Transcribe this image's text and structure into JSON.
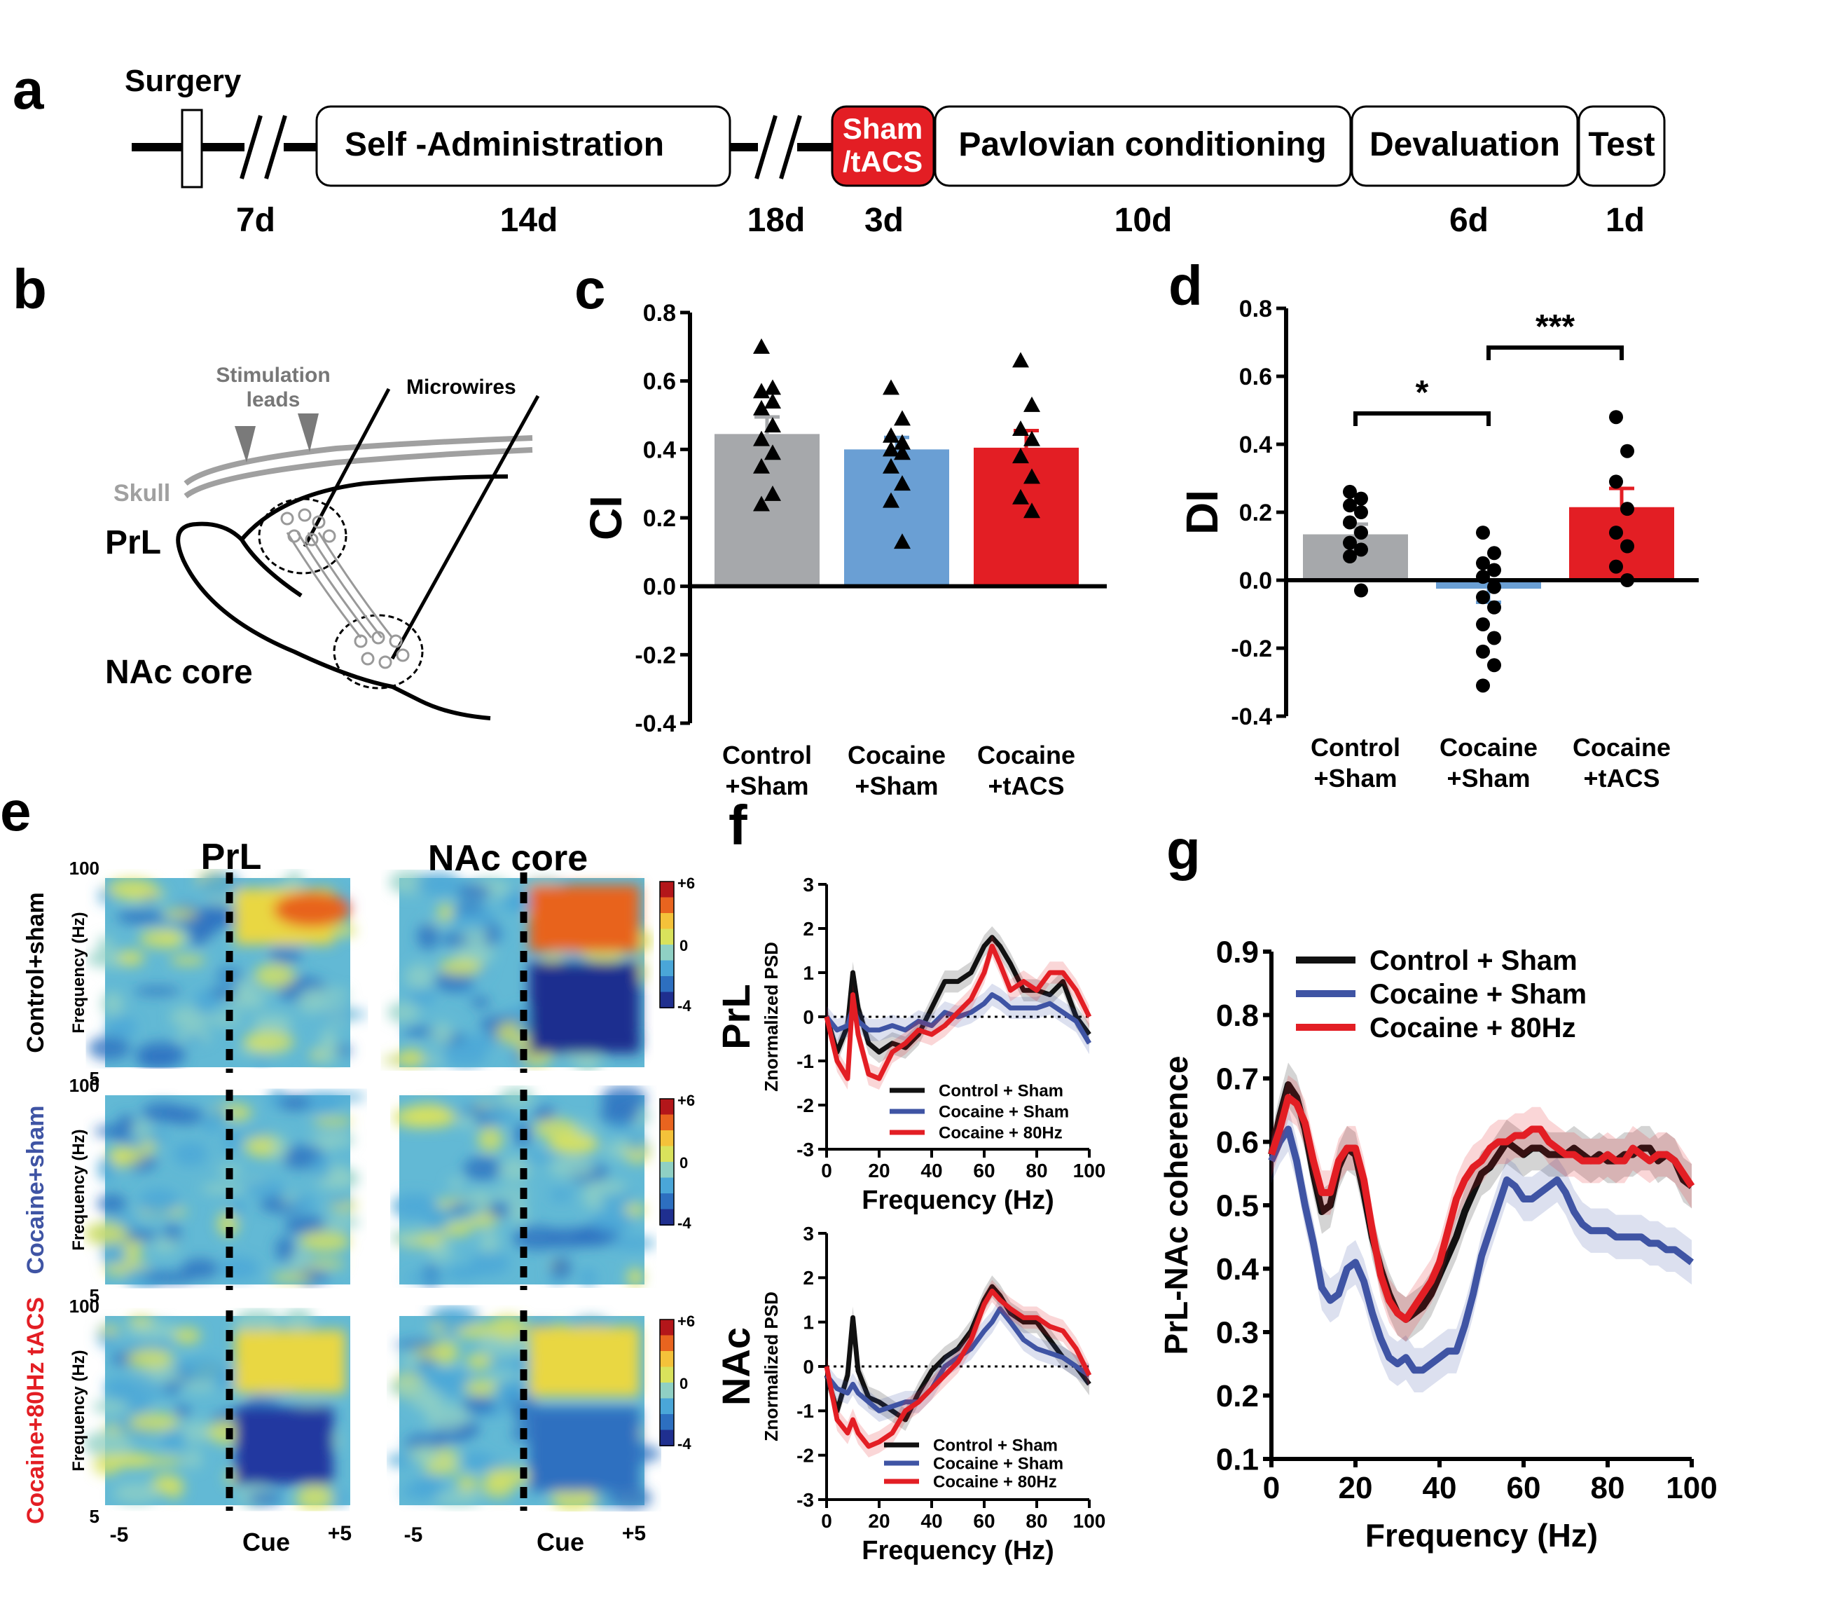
{
  "panel_letters": {
    "a": "a",
    "b": "b",
    "c": "c",
    "d": "d",
    "e": "e",
    "f": "f",
    "g": "g"
  },
  "timeline": {
    "surgery_label": "Surgery",
    "boxes": [
      "Self -Administration",
      "Sham",
      "/tACS",
      "Pavlovian conditioning",
      "Devaluation",
      "Test"
    ],
    "durations": [
      "7d",
      "14d",
      "18d",
      "3d",
      "10d",
      "6d",
      "1d"
    ],
    "colors": {
      "sham_box": "#e31e24"
    }
  },
  "diagram": {
    "labels": {
      "stimulation": "Stimulation",
      "leads": "leads",
      "microwires": "Microwires",
      "skull": "Skull",
      "prl": "PrL",
      "nac": "NAc core"
    }
  },
  "heatmaps": {
    "col_titles": [
      "PrL",
      "NAc core"
    ],
    "row_labels": [
      "Control+sham",
      "Cocaine+sham",
      "Cocaine+80Hz tACS"
    ],
    "row_label_colors": [
      "#000000",
      "#3f54a4",
      "#e31e24"
    ],
    "ylabel": "Frequency (Hz)",
    "ytick_top": "100",
    "ytick_bottom": "5",
    "x_left": "-5",
    "x_mid": "Cue",
    "x_right": "+5",
    "colorbar_ticks": [
      "+6",
      "0",
      "-4"
    ]
  },
  "chart_data": [
    {
      "panel": "c",
      "type": "bar",
      "categories": [
        "Control\n+Sham",
        "Cocaine\n+Sham",
        "Cocaine\n+tACS"
      ],
      "category_lines": [
        [
          "Control",
          "+Sham"
        ],
        [
          "Cocaine",
          "+Sham"
        ],
        [
          "Cocaine",
          "+tACS"
        ]
      ],
      "values": [
        0.445,
        0.4,
        0.405
      ],
      "errors": [
        0.05,
        0.035,
        0.05
      ],
      "colors": [
        "#a6a8ab",
        "#6a9fd4",
        "#e31e24"
      ],
      "points_marker": "triangle",
      "points": [
        [
          0.7,
          0.58,
          0.57,
          0.54,
          0.52,
          0.47,
          0.43,
          0.39,
          0.35,
          0.27,
          0.24
        ],
        [
          0.58,
          0.49,
          0.44,
          0.42,
          0.4,
          0.39,
          0.35,
          0.3,
          0.25,
          0.13
        ],
        [
          0.66,
          0.53,
          0.46,
          0.43,
          0.38,
          0.32,
          0.26,
          0.22
        ]
      ],
      "ylabel": "CI",
      "ylim": [
        -0.4,
        0.8
      ],
      "yticks": [
        "0.8",
        "0.6",
        "0.4",
        "0.2",
        "0.0",
        "-0.2",
        "-0.4"
      ]
    },
    {
      "panel": "d",
      "type": "bar",
      "categories": [
        "Control\n+Sham",
        "Cocaine\n+Sham",
        "Cocaine\n+tACS"
      ],
      "category_lines": [
        [
          "Control",
          "+Sham"
        ],
        [
          "Cocaine",
          "+Sham"
        ],
        [
          "Cocaine",
          "+tACS"
        ]
      ],
      "values": [
        0.135,
        -0.025,
        0.215
      ],
      "errors": [
        0.03,
        0.04,
        0.055
      ],
      "colors": [
        "#a6a8ab",
        "#6a9fd4",
        "#e31e24"
      ],
      "points_marker": "circle",
      "points": [
        [
          0.26,
          0.24,
          0.22,
          0.2,
          0.17,
          0.14,
          0.11,
          0.09,
          0.07,
          -0.03
        ],
        [
          0.14,
          0.08,
          0.05,
          0.03,
          0.01,
          -0.02,
          -0.05,
          -0.08,
          -0.13,
          -0.17,
          -0.21,
          -0.25,
          -0.31
        ],
        [
          0.48,
          0.38,
          0.29,
          0.21,
          0.14,
          0.1,
          0.04,
          0.0
        ]
      ],
      "ylabel": "DI",
      "ylim": [
        -0.4,
        0.8
      ],
      "yticks": [
        "0.8",
        "0.6",
        "0.4",
        "0.2",
        "0.0",
        "-0.2",
        "-0.4"
      ],
      "significance": [
        {
          "from": 0,
          "to": 1,
          "label": "*"
        },
        {
          "from": 1,
          "to": 2,
          "label": "***"
        }
      ]
    },
    {
      "panel": "f-top",
      "type": "line",
      "ylabel": "Znormalized PSD",
      "side_label": "PrL",
      "xlabel": "Frequency (Hz)",
      "xlim": [
        0,
        100
      ],
      "ylim": [
        -3,
        3
      ],
      "xticks": [
        "0",
        "20",
        "40",
        "60",
        "80",
        "100"
      ],
      "yticks": [
        "3",
        "2",
        "1",
        "0",
        "-1",
        "-2",
        "-3"
      ],
      "x": [
        0,
        4,
        8,
        10,
        12,
        16,
        20,
        25,
        30,
        35,
        40,
        45,
        50,
        55,
        60,
        63,
        66,
        70,
        75,
        80,
        85,
        90,
        95,
        100
      ],
      "series": [
        {
          "name": "Control + Sham",
          "color": "#111111",
          "values": [
            0.0,
            -0.8,
            -0.2,
            1.0,
            0.2,
            -0.6,
            -0.8,
            -0.6,
            -0.7,
            -0.4,
            0.2,
            0.8,
            0.8,
            1.0,
            1.6,
            1.8,
            1.6,
            1.2,
            0.6,
            0.6,
            0.5,
            0.8,
            0.0,
            -0.4
          ]
        },
        {
          "name": "Cocaine + Sham",
          "color": "#3f54a4",
          "values": [
            0.0,
            -0.3,
            -0.2,
            0.2,
            -0.1,
            -0.3,
            -0.3,
            -0.2,
            -0.3,
            -0.1,
            -0.2,
            0.1,
            0.0,
            0.1,
            0.3,
            0.5,
            0.4,
            0.2,
            0.2,
            0.2,
            0.3,
            0.1,
            -0.1,
            -0.6
          ]
        },
        {
          "name": "Cocaine + 80Hz",
          "color": "#e31e24",
          "values": [
            0.0,
            -1.0,
            -1.4,
            0.5,
            -0.4,
            -1.3,
            -1.4,
            -0.8,
            -0.6,
            -0.3,
            -0.4,
            -0.2,
            0.1,
            0.4,
            1.0,
            1.6,
            1.2,
            0.6,
            0.8,
            0.6,
            1.0,
            1.0,
            0.6,
            0.0
          ]
        }
      ]
    },
    {
      "panel": "f-bottom",
      "type": "line",
      "ylabel": "Znormalized PSD",
      "side_label": "NAc",
      "xlabel": "Frequency (Hz)",
      "xlim": [
        0,
        100
      ],
      "ylim": [
        -3,
        3
      ],
      "xticks": [
        "0",
        "20",
        "40",
        "60",
        "80",
        "100"
      ],
      "yticks": [
        "3",
        "2",
        "1",
        "0",
        "-1",
        "-2",
        "-3"
      ],
      "x": [
        0,
        4,
        8,
        10,
        12,
        16,
        20,
        25,
        30,
        35,
        40,
        45,
        50,
        55,
        60,
        63,
        66,
        70,
        75,
        80,
        85,
        90,
        95,
        100
      ],
      "series": [
        {
          "name": "Control + Sham",
          "color": "#111111",
          "values": [
            -0.2,
            -1.0,
            -0.2,
            1.1,
            -0.1,
            -0.7,
            -0.8,
            -1.0,
            -1.2,
            -0.6,
            -0.1,
            0.2,
            0.4,
            0.8,
            1.5,
            1.8,
            1.6,
            1.2,
            1.0,
            1.0,
            0.6,
            0.2,
            0.0,
            -0.4
          ]
        },
        {
          "name": "Cocaine + Sham",
          "color": "#3f54a4",
          "values": [
            -0.2,
            -0.5,
            -0.6,
            -0.4,
            -0.6,
            -0.8,
            -1.0,
            -0.9,
            -0.8,
            -0.8,
            -0.5,
            0.0,
            0.2,
            0.4,
            0.8,
            1.0,
            1.3,
            1.0,
            0.6,
            0.4,
            0.3,
            0.2,
            0.0,
            -0.2
          ]
        },
        {
          "name": "Cocaine + 80Hz",
          "color": "#e31e24",
          "values": [
            0.0,
            -1.2,
            -1.5,
            -1.2,
            -1.5,
            -1.8,
            -1.7,
            -1.5,
            -1.0,
            -0.8,
            -0.5,
            -0.2,
            0.1,
            0.6,
            1.4,
            1.7,
            1.5,
            1.3,
            1.1,
            1.1,
            0.9,
            0.8,
            0.4,
            -0.2
          ]
        }
      ]
    },
    {
      "panel": "g",
      "type": "line",
      "ylabel": "PrL-NAc coherence",
      "xlabel": "Frequency (Hz)",
      "xlim": [
        0,
        100
      ],
      "ylim": [
        0.1,
        0.9
      ],
      "xticks": [
        "0",
        "20",
        "40",
        "60",
        "80",
        "100"
      ],
      "yticks": [
        "0.9",
        "0.8",
        "0.7",
        "0.6",
        "0.5",
        "0.4",
        "0.3",
        "0.2",
        "0.1"
      ],
      "x": [
        0,
        2,
        4,
        6,
        8,
        10,
        12,
        14,
        16,
        18,
        20,
        22,
        24,
        26,
        28,
        30,
        32,
        34,
        36,
        38,
        40,
        42,
        44,
        46,
        48,
        50,
        52,
        54,
        56,
        58,
        60,
        62,
        64,
        66,
        68,
        70,
        72,
        74,
        76,
        78,
        80,
        82,
        84,
        86,
        88,
        90,
        92,
        94,
        96,
        98,
        100
      ],
      "series": [
        {
          "name": "Control + Sham",
          "color": "#111111",
          "values": [
            0.58,
            0.64,
            0.69,
            0.67,
            0.62,
            0.55,
            0.49,
            0.5,
            0.56,
            0.59,
            0.58,
            0.52,
            0.45,
            0.4,
            0.36,
            0.33,
            0.32,
            0.33,
            0.34,
            0.36,
            0.39,
            0.42,
            0.45,
            0.49,
            0.52,
            0.55,
            0.56,
            0.58,
            0.6,
            0.59,
            0.58,
            0.59,
            0.59,
            0.58,
            0.58,
            0.58,
            0.59,
            0.58,
            0.57,
            0.58,
            0.57,
            0.57,
            0.58,
            0.58,
            0.59,
            0.59,
            0.57,
            0.58,
            0.57,
            0.54,
            0.53
          ]
        },
        {
          "name": "Cocaine + Sham",
          "color": "#3f54a4",
          "values": [
            0.57,
            0.6,
            0.62,
            0.57,
            0.5,
            0.44,
            0.37,
            0.35,
            0.36,
            0.4,
            0.41,
            0.38,
            0.33,
            0.29,
            0.26,
            0.25,
            0.26,
            0.24,
            0.24,
            0.25,
            0.26,
            0.27,
            0.27,
            0.31,
            0.36,
            0.42,
            0.46,
            0.5,
            0.54,
            0.53,
            0.51,
            0.51,
            0.52,
            0.53,
            0.54,
            0.52,
            0.49,
            0.47,
            0.46,
            0.46,
            0.46,
            0.45,
            0.45,
            0.45,
            0.45,
            0.44,
            0.44,
            0.43,
            0.43,
            0.42,
            0.41
          ]
        },
        {
          "name": "Cocaine + 80Hz",
          "color": "#e31e24",
          "values": [
            0.58,
            0.62,
            0.67,
            0.66,
            0.63,
            0.57,
            0.52,
            0.52,
            0.57,
            0.59,
            0.59,
            0.54,
            0.46,
            0.39,
            0.35,
            0.33,
            0.32,
            0.34,
            0.36,
            0.38,
            0.41,
            0.46,
            0.51,
            0.54,
            0.56,
            0.57,
            0.59,
            0.6,
            0.6,
            0.61,
            0.61,
            0.62,
            0.62,
            0.6,
            0.59,
            0.58,
            0.58,
            0.57,
            0.57,
            0.57,
            0.58,
            0.57,
            0.57,
            0.59,
            0.58,
            0.57,
            0.58,
            0.58,
            0.57,
            0.55,
            0.53
          ]
        }
      ],
      "legend": [
        "Control + Sham",
        "Cocaine + Sham",
        "Cocaine + 80Hz"
      ],
      "legend_position": "top-left"
    }
  ]
}
